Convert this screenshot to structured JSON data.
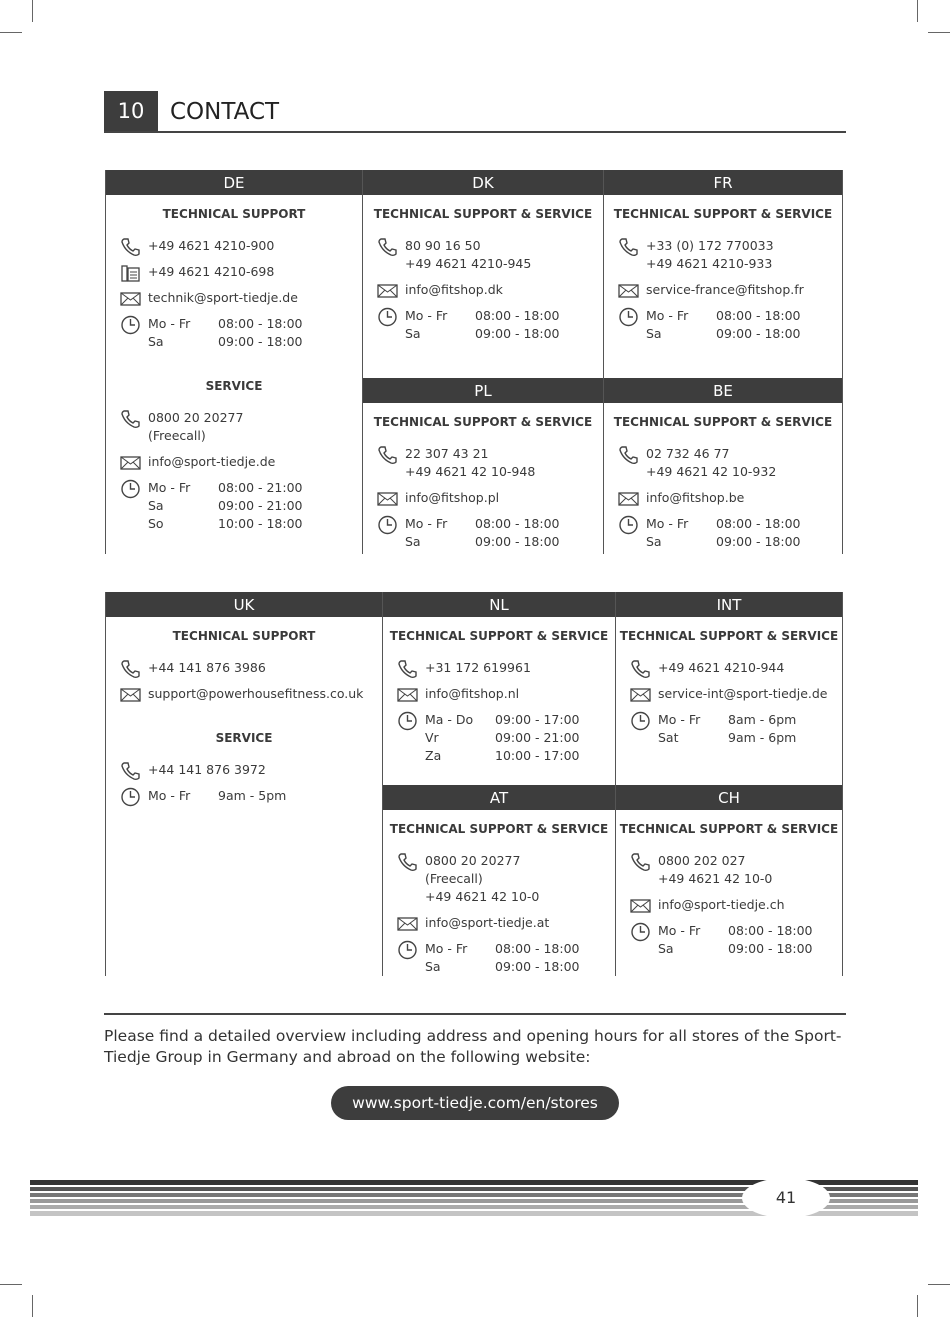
{
  "header": {
    "number": "10",
    "title": "CONTACT"
  },
  "sections": [
    {
      "panels": [
        {
          "code": "DE",
          "blocks": [
            {
              "heading": "TECHNICAL SUPPORT",
              "phone": [
                "+49 4621 4210-900"
              ],
              "fax": [
                "+49 4621 4210-698"
              ],
              "email": [
                "technik@sport-tiedje.de"
              ],
              "hours": [
                [
                  "Mo - Fr",
                  "08:00 - 18:00"
                ],
                [
                  "Sa",
                  "09:00 - 18:00"
                ]
              ]
            },
            {
              "heading": "SERVICE",
              "phone": [
                "0800 20 20277",
                "(Freecall)"
              ],
              "email": [
                "info@sport-tiedje.de"
              ],
              "hours": [
                [
                  "Mo - Fr",
                  "08:00 - 21:00"
                ],
                [
                  "Sa",
                  "09:00 - 21:00"
                ],
                [
                  "So",
                  "10:00 - 18:00"
                ]
              ]
            }
          ]
        },
        {
          "code": "DK",
          "blocks": [
            {
              "heading": "TECHNICAL SUPPORT & SERVICE",
              "phone": [
                "80 90 16 50",
                "+49 4621 4210-945"
              ],
              "email": [
                "info@fitshop.dk"
              ],
              "hours": [
                [
                  "Mo - Fr",
                  "08:00 - 18:00"
                ],
                [
                  "Sa",
                  "09:00 - 18:00"
                ]
              ]
            }
          ]
        },
        {
          "code": "FR",
          "blocks": [
            {
              "heading": "TECHNICAL SUPPORT & SERVICE",
              "phone": [
                "+33 (0) 172 770033",
                "+49 4621 4210-933"
              ],
              "email": [
                "service-france@fitshop.fr"
              ],
              "hours": [
                [
                  "Mo - Fr",
                  "08:00 - 18:00"
                ],
                [
                  "Sa",
                  "09:00 - 18:00"
                ]
              ]
            }
          ]
        },
        {
          "code": "PL",
          "blocks": [
            {
              "heading": "TECHNICAL SUPPORT & SERVICE",
              "phone": [
                "22 307 43 21",
                "+49 4621 42 10-948"
              ],
              "email": [
                "info@fitshop.pl"
              ],
              "hours": [
                [
                  "Mo - Fr",
                  "08:00 - 18:00"
                ],
                [
                  "Sa",
                  "09:00 - 18:00"
                ]
              ]
            }
          ]
        },
        {
          "code": "BE",
          "blocks": [
            {
              "heading": "TECHNICAL SUPPORT & SERVICE",
              "phone": [
                "02 732 46 77",
                "+49 4621 42 10-932"
              ],
              "email": [
                "info@fitshop.be"
              ],
              "hours": [
                [
                  "Mo - Fr",
                  "08:00 - 18:00"
                ],
                [
                  "Sa",
                  "09:00 - 18:00"
                ]
              ]
            }
          ]
        }
      ]
    },
    {
      "panels": [
        {
          "code": "UK",
          "blocks": [
            {
              "heading": "TECHNICAL SUPPORT",
              "phone": [
                "+44 141 876 3986"
              ],
              "email": [
                "support@powerhousefitness.co.uk"
              ]
            },
            {
              "heading": "SERVICE",
              "phone": [
                "+44 141 876 3972"
              ],
              "hours": [
                [
                  "Mo - Fr",
                  "9am - 5pm"
                ]
              ]
            }
          ]
        },
        {
          "code": "NL",
          "blocks": [
            {
              "heading": "TECHNICAL SUPPORT & SERVICE",
              "phone": [
                "+31 172 619961"
              ],
              "email": [
                "info@fitshop.nl"
              ],
              "hours": [
                [
                  "Ma - Do",
                  "09:00 - 17:00"
                ],
                [
                  "Vr",
                  "09:00 - 21:00"
                ],
                [
                  "Za",
                  "10:00 - 17:00"
                ]
              ]
            }
          ]
        },
        {
          "code": "INT",
          "blocks": [
            {
              "heading": "TECHNICAL SUPPORT & SERVICE",
              "phone": [
                "+49 4621 4210-944"
              ],
              "email": [
                "service-int@sport-tiedje.de"
              ],
              "hours": [
                [
                  "Mo - Fr",
                  "8am - 6pm"
                ],
                [
                  "Sat",
                  "9am - 6pm"
                ]
              ]
            }
          ]
        },
        {
          "code": "AT",
          "blocks": [
            {
              "heading": "TECHNICAL SUPPORT & SERVICE",
              "phone": [
                "0800 20 20277",
                "(Freecall)",
                "+49 4621 42 10-0"
              ],
              "email": [
                "info@sport-tiedje.at"
              ],
              "hours": [
                [
                  "Mo - Fr",
                  "08:00 - 18:00"
                ],
                [
                  "Sa",
                  "09:00 - 18:00"
                ]
              ]
            }
          ]
        },
        {
          "code": "CH",
          "blocks": [
            {
              "heading": "TECHNICAL SUPPORT & SERVICE",
              "phone": [
                "0800 202 027",
                "+49 4621 42 10-0"
              ],
              "email": [
                "info@sport-tiedje.ch"
              ],
              "hours": [
                [
                  "Mo - Fr",
                  "08:00 - 18:00"
                ],
                [
                  "Sa",
                  "09:00 - 18:00"
                ]
              ]
            }
          ]
        }
      ]
    }
  ],
  "footer": {
    "text": "Please find a detailed overview including address and opening hours for all stores of the Sport-Tiedje Group in Germany and abroad on the following website:",
    "url": "www.sport-tiedje.com/en/stores",
    "page": "41"
  }
}
